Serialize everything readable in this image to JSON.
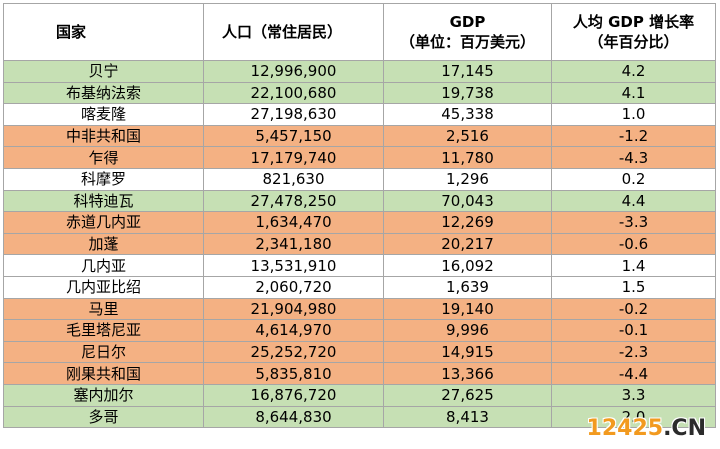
{
  "table": {
    "headers": {
      "country": "国家",
      "population": "人口（常住居民）",
      "gdp_line1": "GDP",
      "gdp_line2": "（单位：百万美元）",
      "growth": "人均 GDP 增长率（年百分比）"
    },
    "row_colors": {
      "green": "#c6e0b4",
      "orange": "#f4b183",
      "white": "#ffffff"
    },
    "rows": [
      {
        "country": "贝宁",
        "population": "12,996,900",
        "gdp": "17,145",
        "growth": "4.2",
        "color": "green"
      },
      {
        "country": "布基纳法索",
        "population": "22,100,680",
        "gdp": "19,738",
        "growth": "4.1",
        "color": "green"
      },
      {
        "country": "喀麦隆",
        "population": "27,198,630",
        "gdp": "45,338",
        "growth": "1.0",
        "color": "white"
      },
      {
        "country": "中非共和国",
        "population": "5,457,150",
        "gdp": "2,516",
        "growth": "-1.2",
        "color": "orange"
      },
      {
        "country": "乍得",
        "population": "17,179,740",
        "gdp": "11,780",
        "growth": "-4.3",
        "color": "orange"
      },
      {
        "country": "科摩罗",
        "population": "821,630",
        "gdp": "1,296",
        "growth": "0.2",
        "color": "white"
      },
      {
        "country": "科特迪瓦",
        "population": "27,478,250",
        "gdp": "70,043",
        "growth": "4.4",
        "color": "green"
      },
      {
        "country": "赤道几内亚",
        "population": "1,634,470",
        "gdp": "12,269",
        "growth": "-3.3",
        "color": "orange"
      },
      {
        "country": "加蓬",
        "population": "2,341,180",
        "gdp": "20,217",
        "growth": "-0.6",
        "color": "orange"
      },
      {
        "country": "几内亚",
        "population": "13,531,910",
        "gdp": "16,092",
        "growth": "1.4",
        "color": "white"
      },
      {
        "country": "几内亚比绍",
        "population": "2,060,720",
        "gdp": "1,639",
        "growth": "1.5",
        "color": "white"
      },
      {
        "country": "马里",
        "population": "21,904,980",
        "gdp": "19,140",
        "growth": "-0.2",
        "color": "orange"
      },
      {
        "country": "毛里塔尼亚",
        "population": "4,614,970",
        "gdp": "9,996",
        "growth": "-0.1",
        "color": "orange"
      },
      {
        "country": "尼日尔",
        "population": "25,252,720",
        "gdp": "14,915",
        "growth": "-2.3",
        "color": "orange"
      },
      {
        "country": "刚果共和国",
        "population": "5,835,810",
        "gdp": "13,366",
        "growth": "-4.4",
        "color": "orange"
      },
      {
        "country": "塞内加尔",
        "population": "16,876,720",
        "gdp": "27,625",
        "growth": "3.3",
        "color": "green"
      },
      {
        "country": "多哥",
        "population": "8,644,830",
        "gdp": "8,413",
        "growth": "2.0",
        "color": "green"
      }
    ]
  },
  "watermark": {
    "main": "12425",
    "tld": ".CN"
  }
}
